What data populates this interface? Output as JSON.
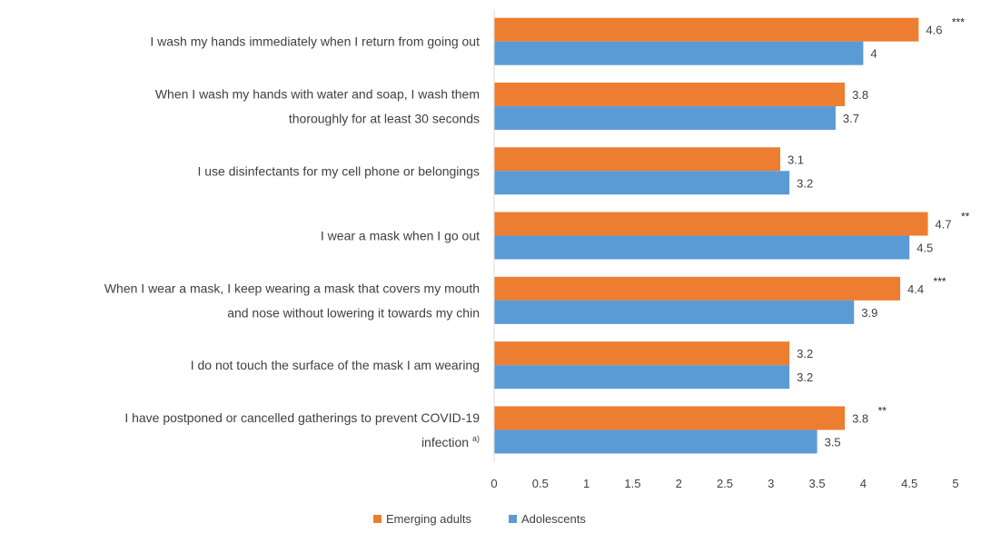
{
  "chart_data": {
    "type": "bar",
    "orientation": "horizontal",
    "categories": [
      {
        "lines": [
          "I wash my hands immediately when I return from going out"
        ],
        "superscript": ""
      },
      {
        "lines": [
          "When I wash my hands with water and soap, I wash them",
          "thoroughly for at least 30 seconds"
        ],
        "superscript": ""
      },
      {
        "lines": [
          "I use disinfectants for my cell phone or belongings"
        ],
        "superscript": ""
      },
      {
        "lines": [
          "I wear a mask when I go out"
        ],
        "superscript": ""
      },
      {
        "lines": [
          "When I wear a mask, I keep wearing a mask that covers my mouth",
          "and nose without lowering it towards my chin"
        ],
        "superscript": ""
      },
      {
        "lines": [
          "I do not touch the surface of the mask I am wearing"
        ],
        "superscript": ""
      },
      {
        "lines": [
          "I have postponed or cancelled gatherings to prevent COVID-19",
          "infection"
        ],
        "superscript": "a)"
      }
    ],
    "series": [
      {
        "name": "Emerging adults",
        "color": "#ED7D31",
        "values": [
          4.6,
          3.8,
          3.1,
          4.7,
          4.4,
          3.2,
          3.8
        ],
        "value_labels": [
          "4.6",
          "3.8",
          "3.1",
          "4.7",
          "4.4",
          "3.2",
          "3.8"
        ]
      },
      {
        "name": "Adolescents",
        "color": "#5B9BD5",
        "values": [
          4.0,
          3.7,
          3.2,
          4.5,
          3.9,
          3.2,
          3.5
        ],
        "value_labels": [
          "4",
          "3.7",
          "3.2",
          "4.5",
          "3.9",
          "3.2",
          "3.5"
        ]
      }
    ],
    "significance": [
      "***",
      "",
      "",
      "**",
      "***",
      "",
      "**"
    ],
    "xlim": [
      0,
      5
    ],
    "xticks": [
      "0",
      "0.5",
      "1",
      "1.5",
      "2",
      "2.5",
      "3",
      "3.5",
      "4",
      "4.5",
      "5"
    ],
    "xtick_values": [
      0,
      0.5,
      1,
      1.5,
      2,
      2.5,
      3,
      3.5,
      4,
      4.5,
      5
    ],
    "grid": false,
    "legend_position": "bottom",
    "title": "",
    "xlabel": "",
    "ylabel": ""
  }
}
